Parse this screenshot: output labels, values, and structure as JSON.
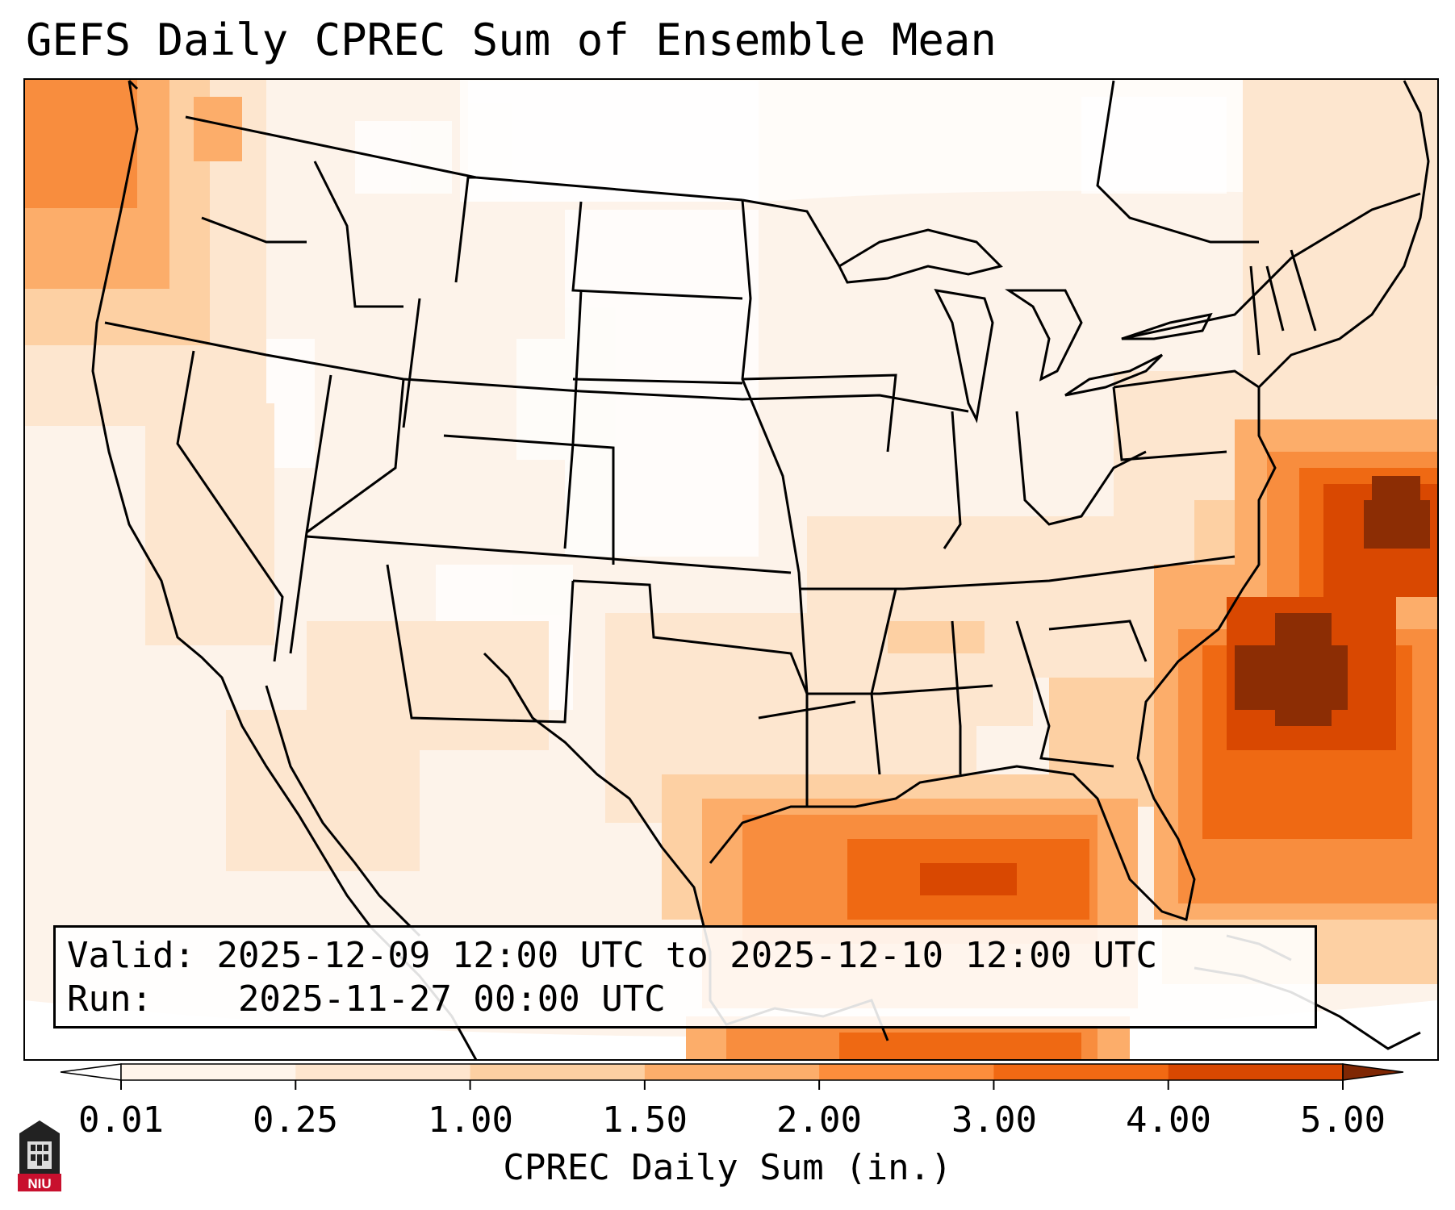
{
  "title": "GEFS Daily CPREC Sum of Ensemble Mean",
  "info": {
    "valid_label": "Valid:",
    "valid_value": "2025-12-09 12:00 UTC to 2025-12-10 12:00 UTC",
    "run_label": "Run:",
    "run_value": "2025-11-27 00:00 UTC"
  },
  "colorbar": {
    "label": "CPREC Daily Sum (in.)",
    "ticks": [
      "0.01",
      "0.25",
      "1.00",
      "1.50",
      "2.00",
      "3.00",
      "4.00",
      "5.00"
    ],
    "colors": [
      "#fff5eb",
      "#fee6ce",
      "#fdd0a2",
      "#fdae6b",
      "#fd8d3c",
      "#f16913",
      "#d94801",
      "#8c2d04"
    ],
    "under_color": "#ffffff",
    "over_color": "#7f2704"
  },
  "precip_regions": [
    {
      "region": "Pacific Northwest coast",
      "level": "1.50-2.00"
    },
    {
      "region": "Gulf of Mexico",
      "level": "2.00-3.00"
    },
    {
      "region": "Atlantic off Carolinas and Georgia",
      "level": "4.00-5.00"
    },
    {
      "region": "Atlantic off Mid-Atlantic coast",
      "level": "4.00-5.00"
    },
    {
      "region": "Interior United States",
      "level": "0.01-0.25"
    }
  ],
  "logo": {
    "text": "NIU",
    "icon": "niu-logo-icon",
    "color": "#c8102e"
  }
}
